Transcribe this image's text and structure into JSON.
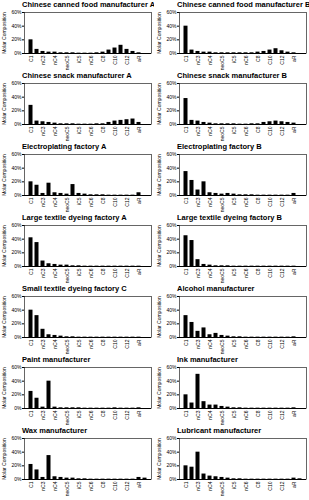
{
  "chart_data": [
    {
      "type": "bar",
      "title": "Chinese canned food manufacturer A",
      "y_label": "Molar Composition",
      "categories": [
        "C1",
        null,
        "nC3",
        null,
        "nC4",
        null,
        "neoC5",
        null,
        "iC5",
        null,
        "nC6",
        null,
        "C8",
        null,
        "C10",
        null,
        "C12",
        null,
        "aR",
        null
      ],
      "values": [
        20,
        6,
        3,
        2,
        2,
        1,
        1,
        1,
        0.5,
        0.5,
        0.5,
        1,
        2,
        5,
        8,
        12,
        6,
        3,
        1,
        0
      ],
      "color": "#000000",
      "ylim": [
        0,
        60
      ],
      "yticks": [
        {
          "value": 0,
          "label": "0%"
        },
        {
          "value": 20,
          "label": "20%"
        },
        {
          "value": 40,
          "label": "40%"
        },
        {
          "value": 60,
          "label": "60%"
        }
      ]
    },
    {
      "type": "bar",
      "title": "Chinese canned food manufacturer B",
      "y_label": "Molar Composition",
      "categories": [
        "C1",
        null,
        "nC3",
        null,
        "nC4",
        null,
        "neoC5",
        null,
        "iC5",
        null,
        "nC6",
        null,
        "C8",
        null,
        "C10",
        null,
        "C12",
        null,
        "aR",
        null
      ],
      "values": [
        40,
        5,
        3,
        2,
        2,
        1,
        1,
        1,
        1,
        1,
        1,
        1,
        2,
        3,
        5,
        7,
        4,
        2,
        1,
        0
      ],
      "color": "#000000",
      "ylim": [
        0,
        60
      ],
      "yticks": [
        {
          "value": 0,
          "label": "0%"
        },
        {
          "value": 20,
          "label": "20%"
        },
        {
          "value": 40,
          "label": "40%"
        },
        {
          "value": 60,
          "label": "60%"
        }
      ]
    },
    {
      "type": "bar",
      "title": "Chinese snack manufacturer A",
      "y_label": "Molar Composition",
      "categories": [
        "C1",
        null,
        "nC3",
        null,
        "nC4",
        null,
        "neoC5",
        null,
        "iC5",
        null,
        "nC6",
        null,
        "C8",
        null,
        "C10",
        null,
        "C12",
        null,
        "aR",
        null
      ],
      "values": [
        28,
        5,
        4,
        3,
        2,
        1,
        1,
        1,
        0.5,
        0.5,
        0.5,
        1,
        1,
        3,
        5,
        6,
        7,
        8,
        3,
        0
      ],
      "color": "#000000",
      "ylim": [
        0,
        60
      ],
      "yticks": [
        {
          "value": 0,
          "label": "0%"
        },
        {
          "value": 20,
          "label": "20%"
        },
        {
          "value": 40,
          "label": "40%"
        },
        {
          "value": 60,
          "label": "60%"
        }
      ]
    },
    {
      "type": "bar",
      "title": "Chinese snack manufacturer B",
      "y_label": "Molar Composition",
      "categories": [
        "C1",
        null,
        "nC3",
        null,
        "nC4",
        null,
        "neoC5",
        null,
        "iC5",
        null,
        "nC6",
        null,
        "C8",
        null,
        "C10",
        null,
        "C12",
        null,
        "aR",
        null
      ],
      "values": [
        38,
        6,
        5,
        3,
        2,
        1,
        1,
        1,
        1,
        0.5,
        0.5,
        1,
        1,
        3,
        4,
        5,
        4,
        3,
        2,
        0
      ],
      "color": "#000000",
      "ylim": [
        0,
        60
      ],
      "yticks": [
        {
          "value": 0,
          "label": "0%"
        },
        {
          "value": 20,
          "label": "20%"
        },
        {
          "value": 40,
          "label": "40%"
        },
        {
          "value": 60,
          "label": "60%"
        }
      ]
    },
    {
      "type": "bar",
      "title": "Electroplating factory A",
      "y_label": "Molar Composition",
      "categories": [
        "C1",
        null,
        "nC3",
        null,
        "nC4",
        null,
        "neoC5",
        null,
        "iC5",
        null,
        "nC6",
        null,
        "C8",
        null,
        "C10",
        null,
        "C12",
        null,
        "aR",
        null
      ],
      "values": [
        20,
        15,
        3,
        18,
        4,
        3,
        2,
        16,
        3,
        2,
        1,
        1,
        1,
        0.5,
        0.5,
        0.5,
        0.5,
        0.5,
        4,
        0
      ],
      "color": "#000000",
      "ylim": [
        0,
        60
      ],
      "yticks": [
        {
          "value": 0,
          "label": "0%"
        },
        {
          "value": 20,
          "label": "20%"
        },
        {
          "value": 40,
          "label": "40%"
        },
        {
          "value": 60,
          "label": "60%"
        }
      ]
    },
    {
      "type": "bar",
      "title": "Electroplating factory B",
      "y_label": "Molar Composition",
      "categories": [
        "C1",
        null,
        "nC3",
        null,
        "nC4",
        null,
        "neoC5",
        null,
        "iC5",
        null,
        "nC6",
        null,
        "C8",
        null,
        "C10",
        null,
        "C12",
        null,
        "aR",
        null
      ],
      "values": [
        35,
        22,
        8,
        20,
        4,
        3,
        2,
        3,
        2,
        1,
        1,
        1,
        0.5,
        0.5,
        0.5,
        0.5,
        0.5,
        0.5,
        3,
        0
      ],
      "color": "#000000",
      "ylim": [
        0,
        60
      ],
      "yticks": [
        {
          "value": 0,
          "label": "0%"
        },
        {
          "value": 20,
          "label": "20%"
        },
        {
          "value": 40,
          "label": "40%"
        },
        {
          "value": 60,
          "label": "60%"
        }
      ]
    },
    {
      "type": "bar",
      "title": "Large textile dyeing factory A",
      "y_label": "Molar Composition",
      "categories": [
        "C1",
        null,
        "nC3",
        null,
        "nC4",
        null,
        "neoC5",
        null,
        "iC5",
        null,
        "nC6",
        null,
        "C8",
        null,
        "C10",
        null,
        "C12",
        null,
        "aR",
        null
      ],
      "values": [
        42,
        35,
        8,
        4,
        3,
        2,
        2,
        1,
        1,
        0.5,
        0.5,
        0.5,
        0.5,
        0.5,
        0.5,
        0.5,
        0.5,
        0.5,
        0.5,
        0
      ],
      "color": "#000000",
      "ylim": [
        0,
        60
      ],
      "yticks": [
        {
          "value": 0,
          "label": "0%"
        },
        {
          "value": 20,
          "label": "20%"
        },
        {
          "value": 40,
          "label": "40%"
        },
        {
          "value": 60,
          "label": "60%"
        }
      ]
    },
    {
      "type": "bar",
      "title": "Large textile dyeing factory B",
      "y_label": "Molar Composition",
      "categories": [
        "C1",
        null,
        "nC3",
        null,
        "nC4",
        null,
        "neoC5",
        null,
        "iC5",
        null,
        "nC6",
        null,
        "C8",
        null,
        "C10",
        null,
        "C12",
        null,
        "aR",
        null
      ],
      "values": [
        45,
        38,
        10,
        3,
        2,
        1,
        1,
        1,
        0.5,
        0.5,
        0.5,
        0.5,
        0.5,
        0.5,
        0.5,
        0.5,
        0.5,
        0.5,
        0.5,
        0
      ],
      "color": "#000000",
      "ylim": [
        0,
        60
      ],
      "yticks": [
        {
          "value": 0,
          "label": "0%"
        },
        {
          "value": 20,
          "label": "20%"
        },
        {
          "value": 40,
          "label": "40%"
        },
        {
          "value": 60,
          "label": "60%"
        }
      ]
    },
    {
      "type": "bar",
      "title": "Small textile dyeing factory C",
      "y_label": "Molar Composition",
      "categories": [
        "C1",
        null,
        "nC3",
        null,
        "nC4",
        null,
        "neoC5",
        null,
        "iC5",
        null,
        "nC6",
        null,
        "C8",
        null,
        "C10",
        null,
        "C12",
        null,
        "aR",
        null
      ],
      "values": [
        40,
        32,
        12,
        4,
        3,
        2,
        1,
        1,
        0.5,
        0.5,
        0.5,
        0.5,
        0.5,
        0.5,
        0.5,
        0.5,
        0.5,
        0.5,
        0.5,
        0
      ],
      "color": "#000000",
      "ylim": [
        0,
        60
      ],
      "yticks": [
        {
          "value": 0,
          "label": "0%"
        },
        {
          "value": 20,
          "label": "20%"
        },
        {
          "value": 40,
          "label": "40%"
        },
        {
          "value": 60,
          "label": "60%"
        }
      ]
    },
    {
      "type": "bar",
      "title": "Alcohol manufacturer",
      "y_label": "Molar Composition",
      "categories": [
        "C1",
        null,
        "nC3",
        null,
        "nC4",
        null,
        "neoC5",
        null,
        "iC5",
        null,
        "nC6",
        null,
        "C8",
        null,
        "C10",
        null,
        "C12",
        null,
        "aR",
        null
      ],
      "values": [
        32,
        22,
        9,
        14,
        4,
        6,
        3,
        2,
        1,
        1,
        0.5,
        0.5,
        0.5,
        0.5,
        0.5,
        0.5,
        0.5,
        0.5,
        1,
        0
      ],
      "color": "#000000",
      "ylim": [
        0,
        60
      ],
      "yticks": [
        {
          "value": 0,
          "label": "0%"
        },
        {
          "value": 20,
          "label": "20%"
        },
        {
          "value": 40,
          "label": "40%"
        },
        {
          "value": 60,
          "label": "60%"
        }
      ]
    },
    {
      "type": "bar",
      "title": "Paint manufacturer",
      "y_label": "Molar Composition",
      "categories": [
        "C1",
        null,
        "nC3",
        null,
        "nC4",
        null,
        "neoC5",
        null,
        "iC5",
        null,
        "nC6",
        null,
        "C8",
        null,
        "C10",
        null,
        "C12",
        null,
        "aR",
        null
      ],
      "values": [
        25,
        15,
        2,
        40,
        2,
        1,
        1,
        1,
        1,
        0.5,
        0.5,
        0.5,
        0.5,
        0.5,
        1,
        0.5,
        0.5,
        0.5,
        1,
        0
      ],
      "color": "#000000",
      "ylim": [
        0,
        60
      ],
      "yticks": [
        {
          "value": 0,
          "label": "0%"
        },
        {
          "value": 20,
          "label": "20%"
        },
        {
          "value": 40,
          "label": "40%"
        },
        {
          "value": 60,
          "label": "60%"
        }
      ]
    },
    {
      "type": "bar",
      "title": "Ink manufacturer",
      "y_label": "Molar Composition",
      "categories": [
        "C1",
        null,
        "nC3",
        null,
        "nC4",
        null,
        "neoC5",
        null,
        "iC5",
        null,
        "nC6",
        null,
        "C8",
        null,
        "C10",
        null,
        "C12",
        null,
        "aR",
        null
      ],
      "values": [
        20,
        8,
        50,
        10,
        5,
        5,
        3,
        2,
        1,
        1,
        0.5,
        0.5,
        0.5,
        0.5,
        0.5,
        0.5,
        0.5,
        0.5,
        1,
        0
      ],
      "color": "#000000",
      "ylim": [
        0,
        60
      ],
      "yticks": [
        {
          "value": 0,
          "label": "0%"
        },
        {
          "value": 20,
          "label": "20%"
        },
        {
          "value": 40,
          "label": "40%"
        },
        {
          "value": 60,
          "label": "60%"
        }
      ]
    },
    {
      "type": "bar",
      "title": "Wax manufacturer",
      "y_label": "Molar Composition",
      "categories": [
        "C1",
        null,
        "nC3",
        null,
        "nC4",
        null,
        "neoC5",
        null,
        "iC5",
        null,
        "nC6",
        null,
        "C8",
        null,
        "C10",
        null,
        "C12",
        null,
        "aR",
        null
      ],
      "values": [
        22,
        14,
        3,
        35,
        4,
        3,
        2,
        2,
        1,
        1,
        0.5,
        0.5,
        0.5,
        0.5,
        0.5,
        0.5,
        0.5,
        0.5,
        3,
        2
      ],
      "color": "#000000",
      "ylim": [
        0,
        60
      ],
      "yticks": [
        {
          "value": 0,
          "label": "0%"
        },
        {
          "value": 20,
          "label": "20%"
        },
        {
          "value": 40,
          "label": "40%"
        },
        {
          "value": 60,
          "label": "60%"
        }
      ]
    },
    {
      "type": "bar",
      "title": "Lubricant manufacturer",
      "y_label": "Molar Composition",
      "categories": [
        "C1",
        null,
        "nC3",
        null,
        "nC4",
        null,
        "neoC5",
        null,
        "iC5",
        null,
        "nC6",
        null,
        "C8",
        null,
        "C10",
        null,
        "C12",
        null,
        "aR",
        null
      ],
      "values": [
        20,
        18,
        40,
        8,
        5,
        4,
        3,
        2,
        1,
        1,
        0.5,
        0.5,
        0.5,
        0.5,
        0.5,
        0.5,
        0.5,
        0.5,
        2,
        1
      ],
      "color": "#000000",
      "ylim": [
        0,
        60
      ],
      "yticks": [
        {
          "value": 0,
          "label": "0%"
        },
        {
          "value": 20,
          "label": "20%"
        },
        {
          "value": 40,
          "label": "40%"
        },
        {
          "value": 60,
          "label": "60%"
        }
      ]
    }
  ]
}
